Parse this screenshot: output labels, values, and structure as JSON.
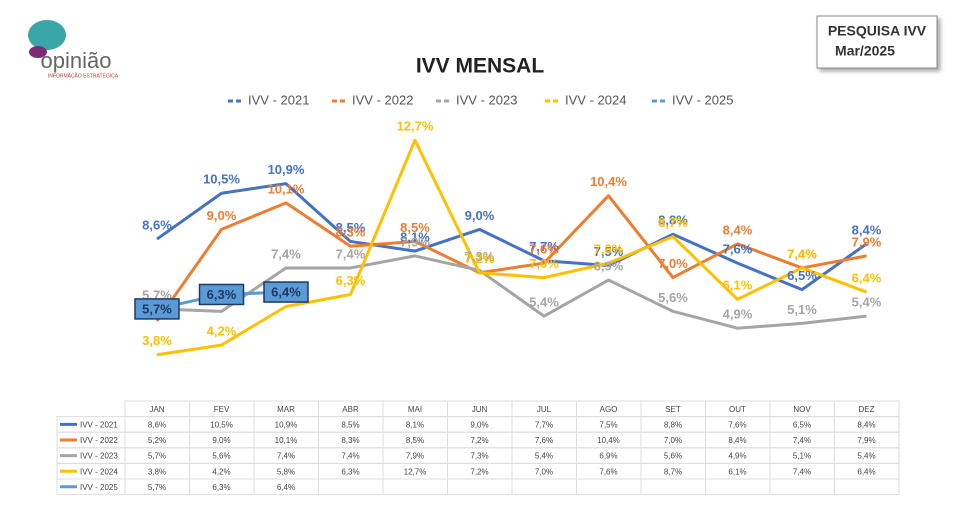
{
  "header": {
    "logo": "opinião",
    "tagline": "INFORMAÇÃO ESTRATÉGICA",
    "badge": [
      "PESQUISA IVV",
      "Mar/2025"
    ]
  },
  "chart_data": {
    "type": "line",
    "title": "IVV MENSAL",
    "categories": [
      "JAN",
      "FEV",
      "MAR",
      "ABR",
      "MAI",
      "JUN",
      "JUL",
      "AGO",
      "SET",
      "OUT",
      "NOV",
      "DEZ"
    ],
    "ylim": [
      3,
      13
    ],
    "legend": "top",
    "series": [
      {
        "name": "IVV - 2021",
        "color": "#4472c4",
        "values": [
          8.6,
          10.5,
          10.9,
          8.5,
          8.1,
          9.0,
          7.7,
          7.5,
          8.8,
          7.6,
          6.5,
          8.4
        ],
        "value_labels": [
          "8,6%",
          "10,5%",
          "10,9%",
          "8,5%",
          "8,1%",
          "9,0%",
          "7,7%",
          "7,5%",
          "8,8%",
          "7,6%",
          "6,5%",
          "8,4%"
        ]
      },
      {
        "name": "IVV - 2022",
        "color": "#ed7d31",
        "values": [
          5.2,
          9.0,
          10.1,
          8.3,
          8.5,
          7.2,
          7.6,
          10.4,
          7.0,
          8.4,
          7.4,
          7.9
        ],
        "value_labels": [
          "5,2%",
          "9,0%",
          "10,1%",
          "8,3%",
          "8,5%",
          "7,2%",
          "7,6%",
          "10,4%",
          "7,0%",
          "8,4%",
          "7,4%",
          "7,9%"
        ]
      },
      {
        "name": "IVV - 2023",
        "color": "#a5a5a5",
        "values": [
          5.7,
          5.6,
          7.4,
          7.4,
          7.9,
          7.3,
          5.4,
          6.9,
          5.6,
          4.9,
          5.1,
          5.4
        ],
        "value_labels": [
          "5,7%",
          "5,6%",
          "7,4%",
          "7,4%",
          "7,9%",
          "7,3%",
          "5,4%",
          "6,9%",
          "5,6%",
          "4,9%",
          "5,1%",
          "5,4%"
        ]
      },
      {
        "name": "IVV - 2024",
        "color": "#ffc000",
        "values": [
          3.8,
          4.2,
          5.8,
          6.3,
          12.7,
          7.2,
          7.0,
          7.6,
          8.7,
          6.1,
          7.4,
          6.4
        ],
        "value_labels": [
          "3,8%",
          "4,2%",
          "5,8%",
          "6,3%",
          "12,7%",
          "7,2%",
          "7,0%",
          "7,6%",
          "8,7%",
          "6,1%",
          "7,4%",
          "6,4%"
        ]
      },
      {
        "name": "IVV - 2025",
        "color": "#5b9bd5",
        "values": [
          5.7,
          6.3,
          6.4,
          null,
          null,
          null,
          null,
          null,
          null,
          null,
          null,
          null
        ],
        "value_labels": [
          "5,7%",
          "6,3%",
          "6,4%",
          null,
          null,
          null,
          null,
          null,
          null,
          null,
          null,
          null
        ]
      }
    ]
  }
}
